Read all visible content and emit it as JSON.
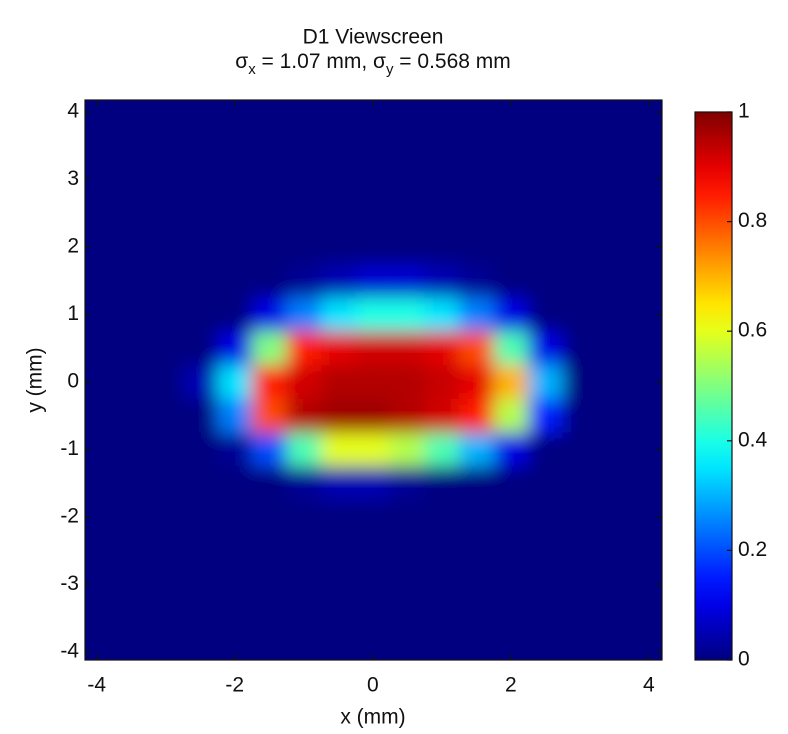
{
  "chart_data": {
    "type": "heatmap",
    "title": "D1 Viewscreen",
    "subtitle": [
      {
        "text": "σ"
      },
      {
        "text": "x",
        "sub": true
      },
      {
        "text": " = 1.07 mm, σ"
      },
      {
        "text": "y",
        "sub": true
      },
      {
        "text": " = 0.568 mm"
      }
    ],
    "x_label": "x (mm)",
    "y_label": "y (mm)",
    "colormap": "jet",
    "x": [
      -4,
      -3.5,
      -3,
      -2.5,
      -2,
      -1.5,
      -1,
      -0.5,
      0,
      0.5,
      1,
      1.5,
      2,
      2.5,
      3,
      3.5,
      4
    ],
    "y": [
      4,
      3.5,
      3,
      2.5,
      2,
      1.5,
      1,
      0.5,
      0,
      -0.5,
      -1,
      -1.5,
      -2,
      -2.5,
      -3,
      -3.5,
      -4
    ],
    "z": [
      [
        0,
        0,
        0,
        0,
        0,
        0,
        0,
        0,
        0,
        0,
        0,
        0,
        0,
        0,
        0,
        0,
        0
      ],
      [
        0,
        0,
        0,
        0,
        0,
        0,
        0,
        0,
        0,
        0,
        0,
        0,
        0,
        0,
        0,
        0,
        0
      ],
      [
        0,
        0,
        0,
        0,
        0,
        0,
        0,
        0,
        0,
        0,
        0,
        0,
        0,
        0,
        0,
        0,
        0
      ],
      [
        0,
        0,
        0,
        0,
        0,
        0,
        0,
        0,
        0,
        0,
        0,
        0,
        0,
        0,
        0,
        0,
        0
      ],
      [
        0,
        0,
        0,
        0,
        0,
        0,
        0,
        0,
        0,
        0,
        0,
        0,
        0,
        0,
        0,
        0,
        0
      ],
      [
        0,
        0,
        0,
        0,
        0,
        0,
        0.02,
        0.05,
        0.08,
        0.08,
        0.05,
        0.02,
        0,
        0,
        0,
        0,
        0
      ],
      [
        0,
        0,
        0,
        0,
        0,
        0.1,
        0.25,
        0.35,
        0.4,
        0.4,
        0.35,
        0.25,
        0.1,
        0,
        0,
        0,
        0
      ],
      [
        0,
        0,
        0,
        0,
        0.1,
        0.5,
        0.85,
        0.9,
        0.92,
        0.92,
        0.9,
        0.8,
        0.45,
        0.1,
        0,
        0,
        0
      ],
      [
        0,
        0,
        0,
        0.05,
        0.35,
        0.85,
        0.92,
        0.95,
        0.95,
        0.95,
        0.93,
        0.9,
        0.7,
        0.3,
        0,
        0,
        0
      ],
      [
        0,
        0,
        0,
        0,
        0.25,
        0.8,
        0.95,
        0.97,
        0.97,
        0.95,
        0.92,
        0.85,
        0.55,
        0.15,
        0,
        0,
        0
      ],
      [
        0,
        0,
        0,
        0,
        0.02,
        0.2,
        0.45,
        0.6,
        0.6,
        0.55,
        0.45,
        0.3,
        0.1,
        0,
        0,
        0,
        0
      ],
      [
        0,
        0,
        0,
        0,
        0,
        0,
        0.02,
        0.05,
        0.05,
        0.02,
        0,
        0,
        0,
        0,
        0,
        0,
        0
      ],
      [
        0,
        0,
        0,
        0,
        0,
        0,
        0,
        0,
        0,
        0,
        0,
        0,
        0,
        0,
        0,
        0,
        0
      ],
      [
        0,
        0,
        0,
        0,
        0,
        0,
        0,
        0,
        0,
        0,
        0,
        0,
        0,
        0,
        0,
        0,
        0
      ],
      [
        0,
        0,
        0,
        0,
        0,
        0,
        0,
        0,
        0,
        0,
        0,
        0,
        0,
        0,
        0,
        0,
        0
      ],
      [
        0,
        0,
        0,
        0,
        0,
        0,
        0,
        0,
        0,
        0,
        0,
        0,
        0,
        0,
        0,
        0,
        0
      ],
      [
        0,
        0,
        0,
        0,
        0,
        0,
        0,
        0,
        0,
        0,
        0,
        0,
        0,
        0,
        0,
        0,
        0
      ]
    ],
    "xlim": [
      -4.17,
      4.19
    ],
    "ylim": [
      -4.12,
      4.18
    ],
    "xticks": [
      -4,
      -2,
      0,
      2,
      4
    ],
    "yticks": [
      -4,
      -3,
      -2,
      -1,
      0,
      1,
      2,
      3,
      4
    ],
    "clim": [
      0,
      1
    ],
    "cticks": [
      0,
      0.2,
      0.4,
      0.6,
      0.8,
      1
    ]
  }
}
